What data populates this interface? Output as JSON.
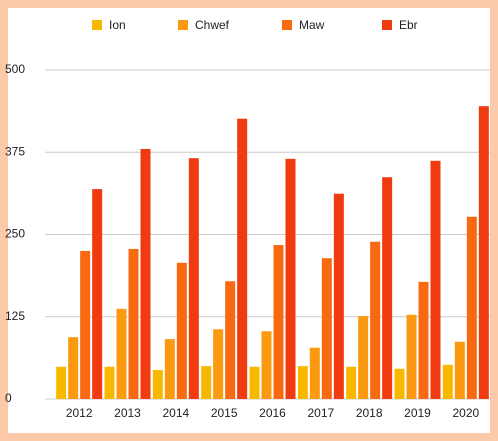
{
  "chart_data": {
    "type": "bar",
    "categories": [
      "2012",
      "2013",
      "2014",
      "2015",
      "2016",
      "2017",
      "2018",
      "2019",
      "2020"
    ],
    "series": [
      {
        "name": "Ion",
        "color": "#f9b800",
        "values": [
          49,
          49,
          44,
          50,
          49,
          50,
          49,
          46,
          52
        ]
      },
      {
        "name": "Chwef",
        "color": "#fb9a10",
        "values": [
          94,
          137,
          91,
          106,
          103,
          78,
          126,
          128,
          87
        ]
      },
      {
        "name": "Maw",
        "color": "#f86a12",
        "values": [
          225,
          228,
          207,
          179,
          234,
          214,
          239,
          178,
          277
        ]
      },
      {
        "name": "Ebr",
        "color": "#f03a10",
        "values": [
          319,
          380,
          366,
          426,
          365,
          312,
          337,
          362,
          445
        ]
      }
    ],
    "ylim": [
      0,
      500
    ],
    "yticks": [
      0,
      125,
      250,
      375,
      500
    ],
    "grid": true,
    "legend": "top"
  }
}
